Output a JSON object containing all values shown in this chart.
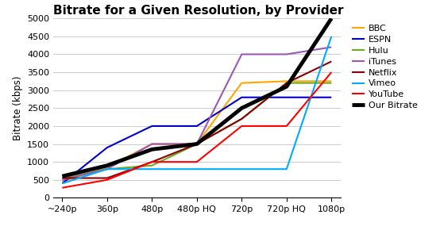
{
  "title": "Bitrate for a Given Resolution, by Provider",
  "ylabel": "Bitrate (kbps)",
  "x_labels": [
    "~240p",
    "360p",
    "480p",
    "480p HQ",
    "720p",
    "720p HQ",
    "1080p"
  ],
  "ylim": [
    0,
    5000
  ],
  "yticks": [
    0,
    500,
    1000,
    1500,
    2000,
    2500,
    3000,
    3500,
    4000,
    4500,
    5000
  ],
  "series": [
    {
      "name": "BBC",
      "color": "#FFA500",
      "linewidth": 1.5,
      "values": [
        450,
        850,
        1500,
        1500,
        3200,
        3250,
        3250
      ]
    },
    {
      "name": "ESPN",
      "color": "#0000CC",
      "linewidth": 1.5,
      "values": [
        400,
        1400,
        2000,
        2000,
        2800,
        2800,
        2800
      ]
    },
    {
      "name": "Hulu",
      "color": "#6AAB20",
      "linewidth": 1.5,
      "values": [
        550,
        800,
        900,
        1500,
        2200,
        3200,
        3200
      ]
    },
    {
      "name": "iTunes",
      "color": "#9B59B6",
      "linewidth": 1.5,
      "values": [
        500,
        800,
        1500,
        1500,
        4000,
        4000,
        4200
      ]
    },
    {
      "name": "Netflix",
      "color": "#8B0000",
      "linewidth": 1.5,
      "values": [
        550,
        550,
        1000,
        1500,
        2200,
        3200,
        3800
      ]
    },
    {
      "name": "Vimeo",
      "color": "#00AAFF",
      "linewidth": 1.5,
      "values": [
        400,
        800,
        800,
        800,
        800,
        800,
        4500
      ]
    },
    {
      "name": "YouTube",
      "color": "#FF0000",
      "linewidth": 1.5,
      "values": [
        280,
        500,
        1000,
        1000,
        2000,
        2000,
        3500
      ]
    },
    {
      "name": "Our Bitrate",
      "color": "#000000",
      "linewidth": 3.5,
      "values": [
        600,
        900,
        1350,
        1500,
        2500,
        3100,
        5000
      ]
    }
  ],
  "background_color": "#FFFFFF",
  "grid_color": "#CCCCCC",
  "title_fontsize": 11,
  "label_fontsize": 8.5,
  "tick_fontsize": 8,
  "legend_fontsize": 8
}
